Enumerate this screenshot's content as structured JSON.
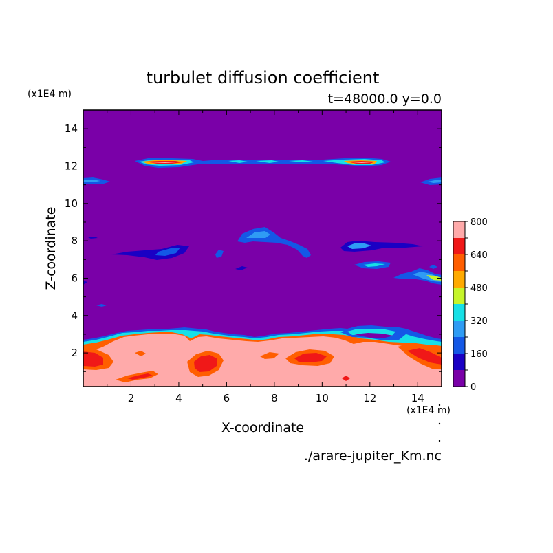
{
  "chart_data": {
    "type": "heatmap",
    "title": "turbulet diffusion coefficient",
    "subtitle": "t=48000.0 y=0.0",
    "xlabel": "X-coordinate",
    "ylabel": "Z-coordinate",
    "x_unit": "(x1E4 m)",
    "y_unit": "(x1E4 m)",
    "xlim": [
      0,
      15
    ],
    "ylim": [
      0.2,
      15
    ],
    "x_ticks": [
      2,
      4,
      6,
      8,
      10,
      12,
      14
    ],
    "y_ticks": [
      2,
      4,
      6,
      8,
      10,
      12,
      14
    ],
    "colorbar": {
      "levels": [
        0,
        80,
        160,
        240,
        320,
        400,
        480,
        560,
        640,
        720,
        800
      ],
      "tick_labels": [
        "0",
        "160",
        "320",
        "480",
        "640",
        "800"
      ],
      "colors": [
        "#7a00a8",
        "#1a00c4",
        "#1458e6",
        "#2f9cf4",
        "#17e0e6",
        "#c6f52a",
        "#ffaa00",
        "#ff5e00",
        "#f01818",
        "#ffaaaa"
      ]
    },
    "background_value": 40,
    "features": [
      {
        "name": "near-surface band",
        "x": [
          0,
          15
        ],
        "z": [
          0.2,
          3.1
        ],
        "value": 780
      },
      {
        "name": "warm patches in band",
        "x": [
          0,
          15
        ],
        "z": [
          0.5,
          2.6
        ],
        "value": 640
      },
      {
        "name": "upper layer",
        "x": [
          2.2,
          12.8
        ],
        "z": [
          11.8,
          12.4
        ],
        "value": 750
      },
      {
        "name": "left edge lobe",
        "x": [
          0,
          1.2
        ],
        "z": [
          10.9,
          11.3
        ],
        "value": 300
      },
      {
        "name": "right edge lobe",
        "x": [
          13.9,
          15
        ],
        "z": [
          10.9,
          11.3
        ],
        "value": 300
      },
      {
        "name": "mid plume",
        "x": [
          6.4,
          9.4
        ],
        "z": [
          7.1,
          8.6
        ],
        "value": 280
      },
      {
        "name": "left mid streak",
        "x": [
          1.2,
          4.6
        ],
        "z": [
          7.0,
          7.6
        ],
        "value": 240
      },
      {
        "name": "right mid streak",
        "x": [
          10.2,
          14.0
        ],
        "z": [
          7.3,
          7.8
        ],
        "value": 240
      },
      {
        "name": "right edge cloud",
        "x": [
          12.8,
          15
        ],
        "z": [
          5.7,
          6.6
        ],
        "value": 330
      }
    ],
    "source_file": "./arare-jupiter_Km.nc"
  }
}
